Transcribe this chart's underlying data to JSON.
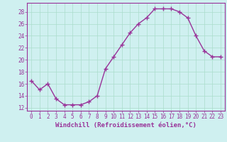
{
  "x": [
    0,
    1,
    2,
    3,
    4,
    5,
    6,
    7,
    8,
    9,
    10,
    11,
    12,
    13,
    14,
    15,
    16,
    17,
    18,
    19,
    20,
    21,
    22,
    23
  ],
  "y": [
    16.5,
    15.0,
    16.0,
    13.5,
    12.5,
    12.5,
    12.5,
    13.0,
    14.0,
    18.5,
    20.5,
    22.5,
    24.5,
    26.0,
    27.0,
    28.5,
    28.5,
    28.5,
    28.0,
    27.0,
    24.0,
    21.5,
    20.5,
    20.5
  ],
  "line_color": "#993399",
  "marker": "+",
  "marker_size": 4,
  "bg_color": "#cff0f0",
  "grid_color": "#aaddcc",
  "xlabel": "Windchill (Refroidissement éolien,°C)",
  "xlim": [
    -0.5,
    23.5
  ],
  "ylim": [
    11.5,
    29.5
  ],
  "yticks": [
    12,
    14,
    16,
    18,
    20,
    22,
    24,
    26,
    28
  ],
  "xticks": [
    0,
    1,
    2,
    3,
    4,
    5,
    6,
    7,
    8,
    9,
    10,
    11,
    12,
    13,
    14,
    15,
    16,
    17,
    18,
    19,
    20,
    21,
    22,
    23
  ],
  "label_color": "#993399",
  "tick_label_fontsize": 5.5,
  "xlabel_fontsize": 6.5,
  "line_width": 1.0
}
